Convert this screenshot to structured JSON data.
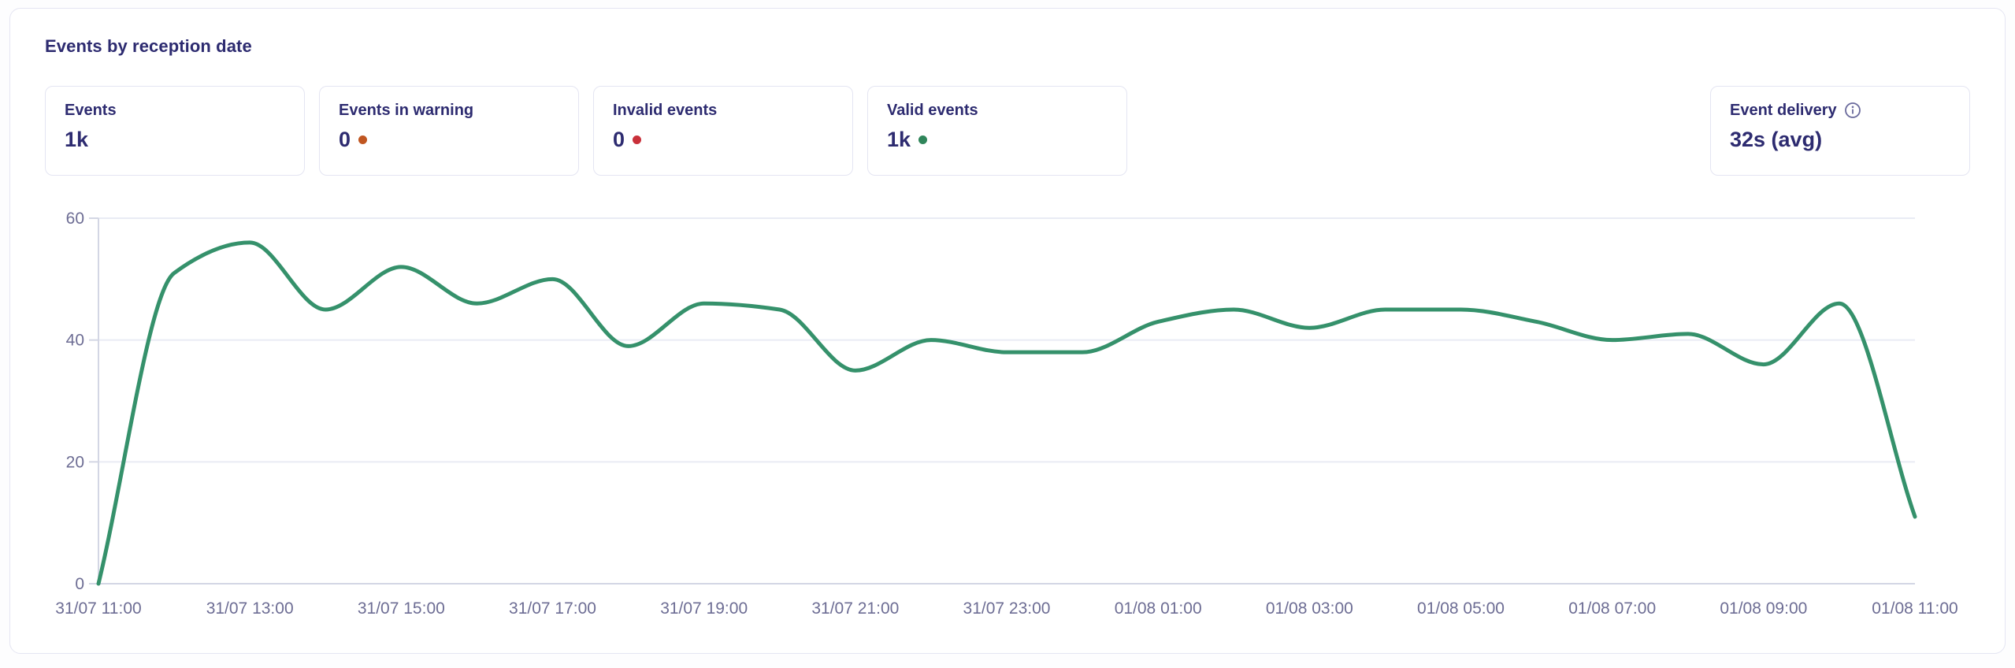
{
  "panel": {
    "title": "Events by reception date"
  },
  "stats": {
    "events": {
      "label": "Events",
      "value": "1k"
    },
    "warning": {
      "label": "Events in warning",
      "value": "0",
      "dot_color": "#c05621"
    },
    "invalid": {
      "label": "Invalid events",
      "value": "0",
      "dot_color": "#c9303a"
    },
    "valid": {
      "label": "Valid events",
      "value": "1k",
      "dot_color": "#2f855a"
    },
    "delivery": {
      "label": "Event delivery",
      "value": "32s (avg)",
      "info_icon": "info-icon",
      "icon_color": "#6a6a9c"
    }
  },
  "chart_data": {
    "type": "line",
    "title": "Events by reception date",
    "x": [
      "31/07 11:00",
      "31/07 12:00",
      "31/07 13:00",
      "31/07 14:00",
      "31/07 15:00",
      "31/07 16:00",
      "31/07 17:00",
      "31/07 18:00",
      "31/07 19:00",
      "31/07 20:00",
      "31/07 21:00",
      "31/07 22:00",
      "31/07 23:00",
      "01/08 00:00",
      "01/08 01:00",
      "01/08 02:00",
      "01/08 03:00",
      "01/08 04:00",
      "01/08 05:00",
      "01/08 06:00",
      "01/08 07:00",
      "01/08 08:00",
      "01/08 09:00",
      "01/08 10:00",
      "01/08 11:00"
    ],
    "values": [
      0,
      51,
      56,
      45,
      52,
      46,
      50,
      39,
      46,
      45,
      35,
      40,
      38,
      38,
      43,
      45,
      42,
      45,
      45,
      43,
      40,
      41,
      36,
      46,
      11
    ],
    "x_tick_labels": [
      "31/07 11:00",
      "31/07 13:00",
      "31/07 15:00",
      "31/07 17:00",
      "31/07 19:00",
      "31/07 21:00",
      "31/07 23:00",
      "01/08 01:00",
      "01/08 03:00",
      "01/08 05:00",
      "01/08 07:00",
      "01/08 09:00",
      "01/08 11:00"
    ],
    "y_ticks": [
      0,
      20,
      40,
      60
    ],
    "ylim": [
      0,
      60
    ],
    "xlabel": "",
    "ylabel": "",
    "grid": "on",
    "legend": "none",
    "smoothing": "monotone",
    "line_color": "#35916b",
    "axis_text_color": "#6d6d94",
    "grid_color": "#e9ebf4",
    "axis_line_color": "#d3d6e4"
  }
}
